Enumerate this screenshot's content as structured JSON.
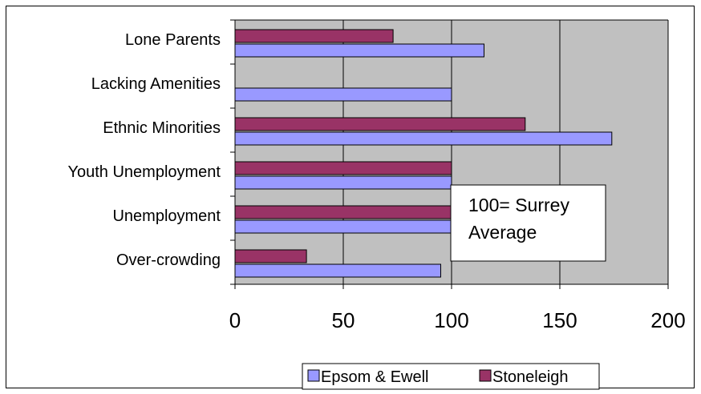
{
  "chart_data": {
    "type": "bar",
    "orientation": "horizontal",
    "categories": [
      "Lone Parents",
      "Lacking Amenities",
      "Ethnic Minorities",
      "Youth Unemployment",
      "Unemployment",
      "Over-crowding"
    ],
    "series": [
      {
        "name": "Epsom & Ewell",
        "color": "#9999ff",
        "values": [
          115,
          100,
          174,
          100,
          100,
          95
        ]
      },
      {
        "name": "Stoneleigh",
        "color": "#993366",
        "values": [
          73,
          0,
          134,
          100,
          100,
          33
        ]
      }
    ],
    "xlim": [
      0,
      200
    ],
    "xticks": [
      0,
      50,
      100,
      150,
      200
    ],
    "xtick_labels": [
      "0",
      "50",
      "100",
      "150",
      "200"
    ],
    "grid": true,
    "plot_background": "#c0c0c0",
    "legend_position": "bottom",
    "annotation": {
      "lines": [
        "100= Surrey",
        "Average"
      ]
    }
  }
}
